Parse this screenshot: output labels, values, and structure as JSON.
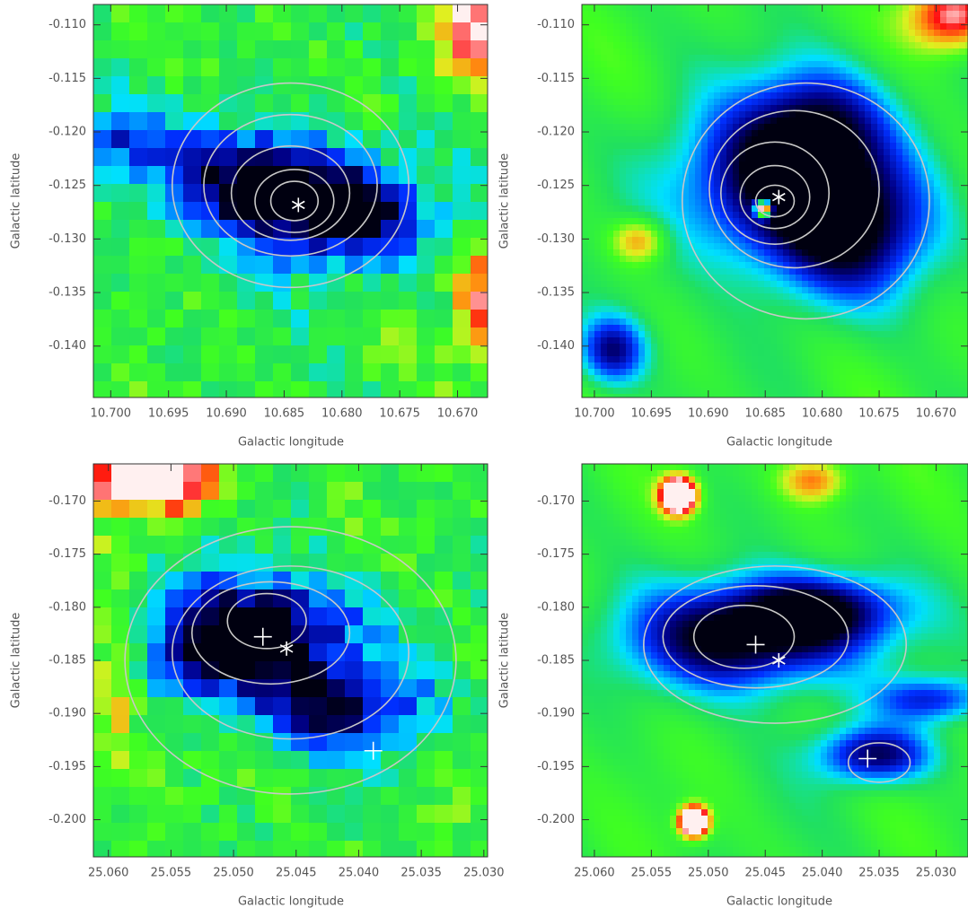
{
  "chart_data": [
    {
      "type": "image",
      "xlabel": "Galactic longitude",
      "ylabel": "Galactic latitude",
      "xlim": [
        10.7015,
        10.6674
      ],
      "ylim": [
        -0.1448,
        -0.1081
      ],
      "xticks": [
        {
          "value": 10.7,
          "label": "10.700"
        },
        10.695,
        {
          "value": 10.69,
          "label": "10.690"
        },
        10.685,
        {
          "value": 10.68,
          "label": "10.680"
        },
        10.675,
        {
          "value": 10.67,
          "label": "10.670"
        }
      ],
      "yticks": [
        {
          "value": -0.11,
          "label": "-0.110"
        },
        -0.115,
        {
          "value": -0.12,
          "label": "-0.120"
        },
        -0.125,
        {
          "value": -0.13,
          "label": "-0.130"
        },
        -0.135,
        {
          "value": -0.14,
          "label": "-0.140"
        }
      ]
    },
    {
      "type": "image",
      "xlabel": "Galactic longitude",
      "ylabel": "Galactic latitude",
      "xlim": [
        10.7011,
        10.6672
      ],
      "ylim": [
        -0.1448,
        -0.1081
      ],
      "xticks": [
        {
          "value": 10.7,
          "label": "10.700"
        },
        10.695,
        {
          "value": 10.69,
          "label": "10.690"
        },
        10.685,
        {
          "value": 10.68,
          "label": "10.680"
        },
        10.675,
        {
          "value": 10.67,
          "label": "10.670"
        }
      ],
      "yticks": [
        {
          "value": -0.11,
          "label": "-0.110"
        },
        -0.115,
        {
          "value": -0.12,
          "label": "-0.120"
        },
        -0.125,
        {
          "value": -0.13,
          "label": "-0.130"
        },
        -0.135,
        {
          "value": -0.14,
          "label": "-0.140"
        }
      ]
    },
    {
      "type": "image",
      "xlabel": "Galactic longitude",
      "ylabel": "Galactic latitude",
      "xlim": [
        25.0612,
        25.0297
      ],
      "ylim": [
        -0.2035,
        -0.1665
      ],
      "xticks": [
        {
          "value": 25.06,
          "label": "25.060"
        },
        25.055,
        {
          "value": 25.05,
          "label": "25.050"
        },
        25.045,
        {
          "value": 25.04,
          "label": "25.040"
        },
        25.035,
        {
          "value": 25.03,
          "label": "25.030"
        }
      ],
      "yticks": [
        {
          "value": -0.17,
          "label": "-0.170"
        },
        -0.175,
        {
          "value": -0.18,
          "label": "-0.180"
        },
        -0.185,
        {
          "value": -0.19,
          "label": "-0.190"
        },
        -0.195,
        {
          "value": -0.2,
          "label": "-0.200"
        }
      ]
    },
    {
      "type": "image",
      "xlabel": "Galactic longitude",
      "ylabel": "Galactic latitude",
      "xlim": [
        25.0611,
        25.0272
      ],
      "ylim": [
        -0.2035,
        -0.1665
      ],
      "xticks": [
        {
          "value": 25.06,
          "label": "25.060"
        },
        25.055,
        {
          "value": 25.05,
          "label": "25.050"
        },
        25.045,
        {
          "value": 25.04,
          "label": "25.040"
        },
        25.035,
        {
          "value": 25.03,
          "label": "25.030"
        }
      ],
      "yticks": [
        {
          "value": -0.17,
          "label": "-0.170"
        },
        -0.175,
        {
          "value": -0.18,
          "label": "-0.180"
        },
        -0.185,
        {
          "value": -0.19,
          "label": "-0.190"
        },
        -0.195,
        {
          "value": -0.2,
          "label": "-0.200"
        }
      ]
    }
  ]
}
